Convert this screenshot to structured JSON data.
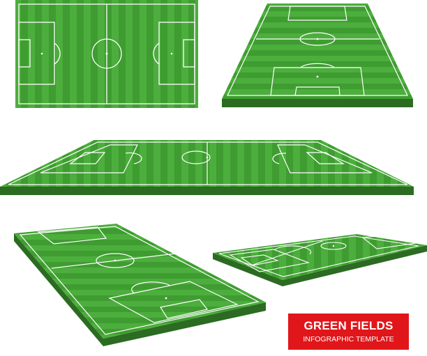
{
  "banner": {
    "title": "GREEN FIELDS",
    "subtitle": "INFOGRAPHIC TEMPLATE"
  },
  "colors": {
    "grass_light": "#4cae3c",
    "grass_dark": "#3d9a2f",
    "side": "#2c6b22",
    "line": "#ffffff",
    "banner": "#e0161b"
  }
}
